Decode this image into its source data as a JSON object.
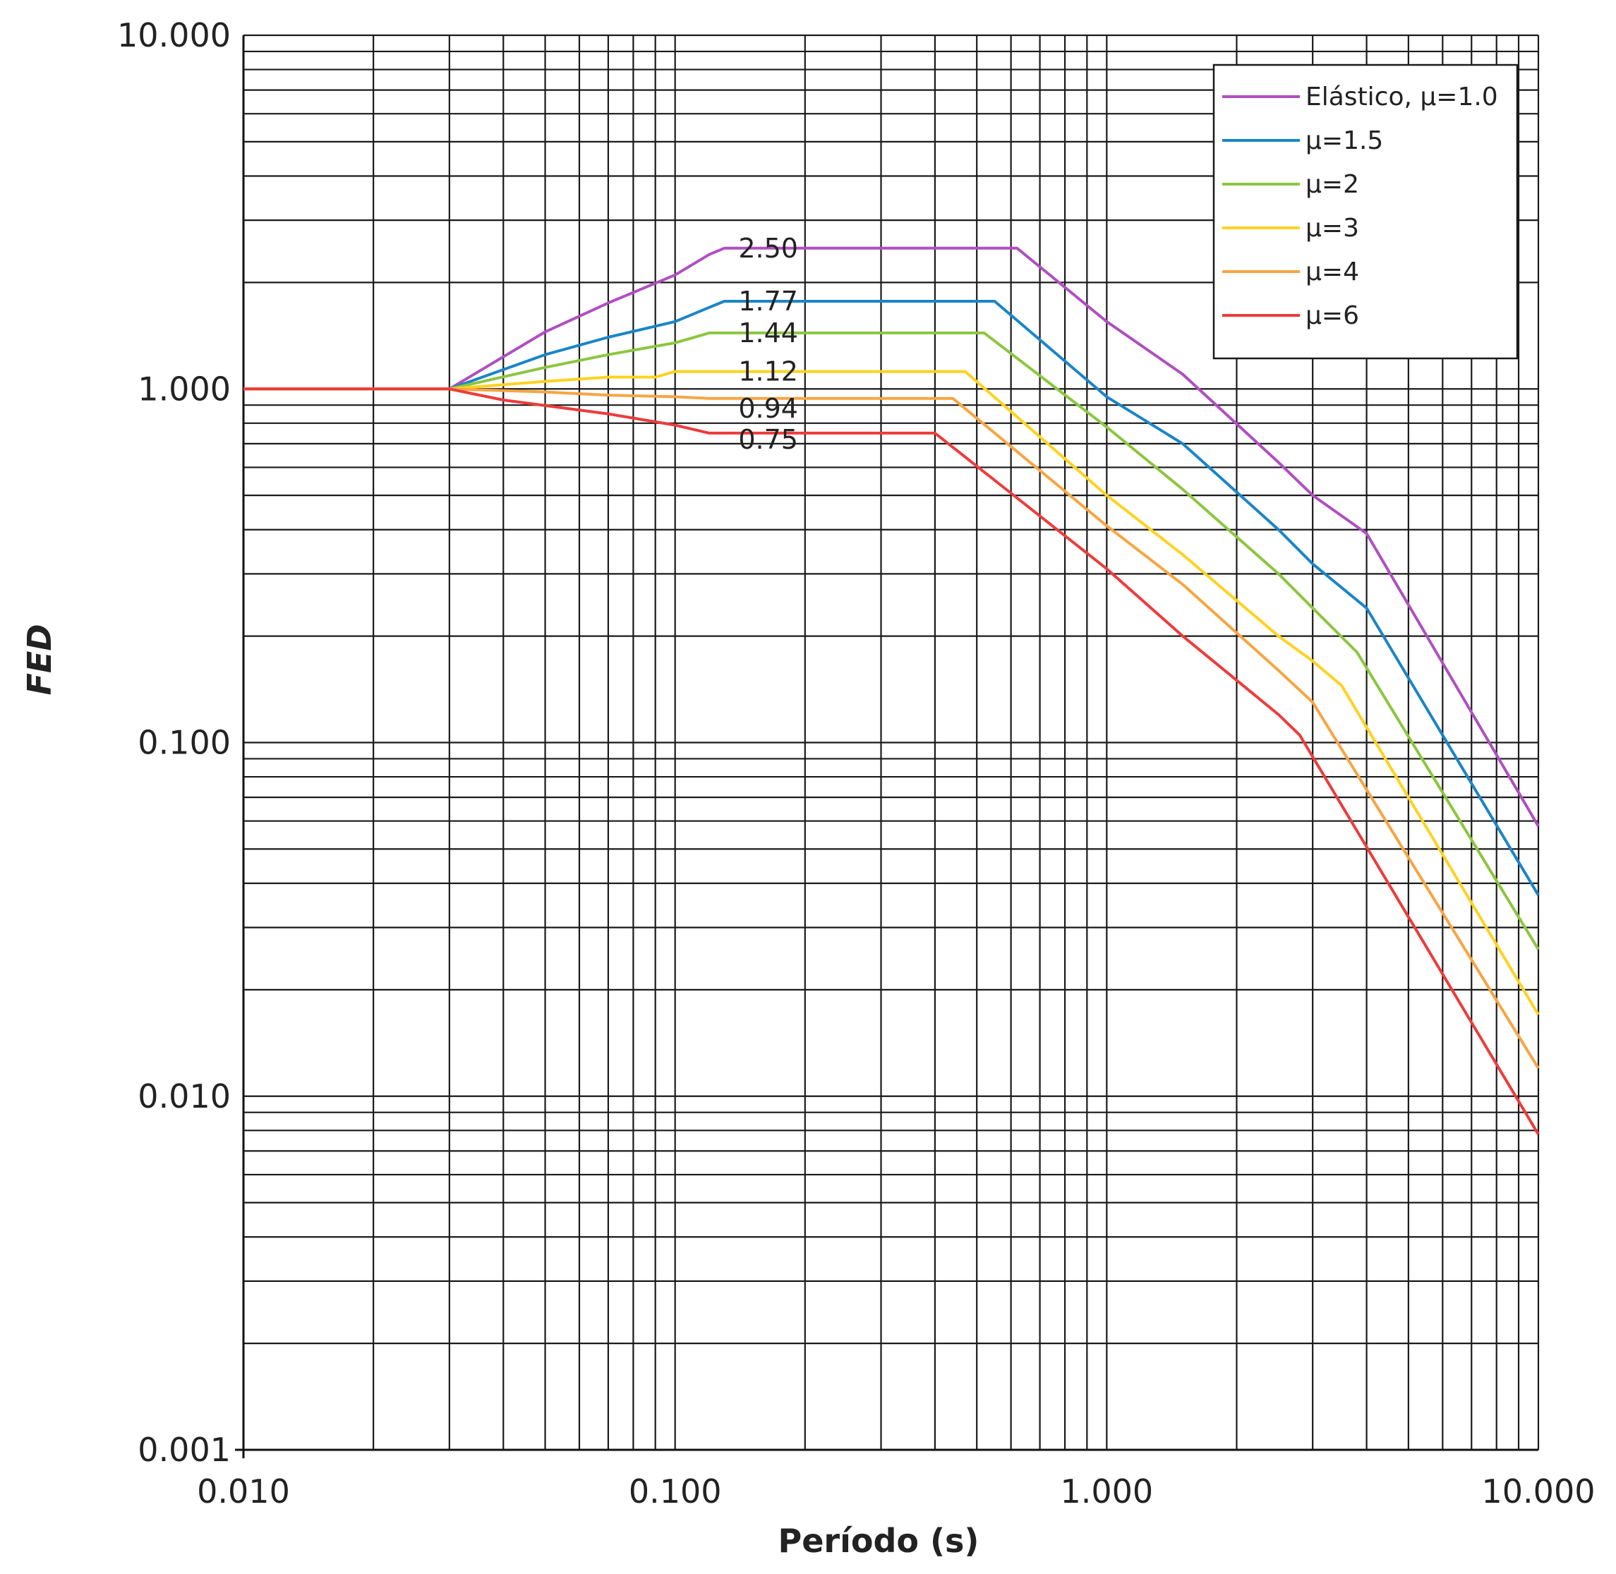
{
  "chart_data": {
    "type": "line",
    "xlabel": "Período (s)",
    "ylabel": "FED",
    "xscale": "log",
    "yscale": "log",
    "xlim": [
      0.01,
      10.0
    ],
    "ylim": [
      0.001,
      10.0
    ],
    "grid": true,
    "legend_position": "top-right",
    "x_ticks": [
      {
        "value": 0.01,
        "label": "0.010"
      },
      {
        "value": 0.1,
        "label": "0.100"
      },
      {
        "value": 1.0,
        "label": "1.000"
      },
      {
        "value": 10.0,
        "label": "10.000"
      }
    ],
    "y_ticks": [
      {
        "value": 0.001,
        "label": "0.001"
      },
      {
        "value": 0.01,
        "label": "0.010"
      },
      {
        "value": 0.1,
        "label": "0.100"
      },
      {
        "value": 1.0,
        "label": "1.000"
      },
      {
        "value": 10.0,
        "label": "10.000"
      }
    ],
    "series": [
      {
        "name": "Elástico, μ=1.0",
        "color": "#b04fc0",
        "x": [
          0.01,
          0.03,
          0.05,
          0.07,
          0.1,
          0.12,
          0.13,
          0.62,
          1.0,
          1.5,
          2.5,
          3.0,
          4.0,
          10.0
        ],
        "y": [
          1.0,
          1.0,
          1.45,
          1.75,
          2.1,
          2.4,
          2.5,
          2.5,
          1.55,
          1.1,
          0.62,
          0.5,
          0.39,
          0.058
        ]
      },
      {
        "name": "μ=1.5",
        "color": "#1a85c8",
        "x": [
          0.01,
          0.03,
          0.05,
          0.07,
          0.1,
          0.12,
          0.13,
          0.55,
          1.0,
          1.5,
          2.5,
          3.0,
          4.0,
          10.0
        ],
        "y": [
          1.0,
          1.0,
          1.25,
          1.4,
          1.55,
          1.7,
          1.77,
          1.77,
          0.95,
          0.7,
          0.4,
          0.32,
          0.24,
          0.037
        ]
      },
      {
        "name": "μ=2",
        "color": "#8cc63f",
        "x": [
          0.01,
          0.03,
          0.05,
          0.07,
          0.1,
          0.12,
          0.52,
          1.0,
          1.5,
          2.5,
          3.0,
          3.8,
          10.0
        ],
        "y": [
          1.0,
          1.0,
          1.15,
          1.25,
          1.35,
          1.44,
          1.44,
          0.78,
          0.52,
          0.3,
          0.24,
          0.18,
          0.026
        ]
      },
      {
        "name": "μ=3",
        "color": "#ffd21f",
        "x": [
          0.01,
          0.03,
          0.05,
          0.07,
          0.09,
          0.1,
          0.47,
          1.0,
          1.5,
          2.5,
          3.0,
          3.5,
          10.0
        ],
        "y": [
          1.0,
          1.0,
          1.05,
          1.08,
          1.08,
          1.12,
          1.12,
          0.5,
          0.34,
          0.2,
          0.17,
          0.145,
          0.017
        ]
      },
      {
        "name": "μ=4",
        "color": "#f7a541",
        "x": [
          0.01,
          0.03,
          0.05,
          0.07,
          0.1,
          0.12,
          0.44,
          1.0,
          1.5,
          2.5,
          3.0,
          10.0
        ],
        "y": [
          1.0,
          1.0,
          0.98,
          0.96,
          0.95,
          0.94,
          0.94,
          0.41,
          0.28,
          0.16,
          0.13,
          0.012
        ]
      },
      {
        "name": "μ=6",
        "color": "#ee3b3b",
        "x": [
          0.01,
          0.03,
          0.04,
          0.07,
          0.1,
          0.12,
          0.4,
          1.0,
          1.5,
          2.5,
          2.8,
          10.0
        ],
        "y": [
          1.0,
          1.0,
          0.93,
          0.85,
          0.79,
          0.75,
          0.75,
          0.31,
          0.2,
          0.12,
          0.105,
          0.0078
        ]
      }
    ],
    "annotations": [
      {
        "text": "2.50",
        "x": 0.135,
        "y": 2.5
      },
      {
        "text": "1.77",
        "x": 0.135,
        "y": 1.77
      },
      {
        "text": "1.44",
        "x": 0.135,
        "y": 1.44
      },
      {
        "text": "1.12",
        "x": 0.135,
        "y": 1.12
      },
      {
        "text": "0.94",
        "x": 0.135,
        "y": 0.88
      },
      {
        "text": "0.75",
        "x": 0.135,
        "y": 0.72
      }
    ]
  }
}
